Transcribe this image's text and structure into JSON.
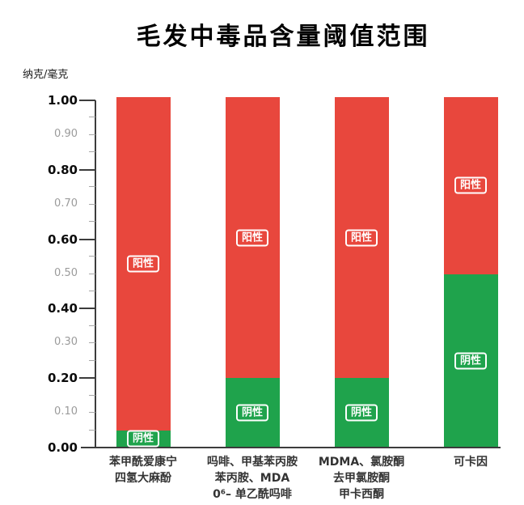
{
  "title": "毛发中毒品含量阈值范围",
  "y_axis": {
    "unit_label": "纳克/毫克",
    "min": 0,
    "max": 1,
    "label_step": 0.1,
    "tick_step": 0.05,
    "major_step": 0.2
  },
  "colors": {
    "positive_red": "#e8473d",
    "negative_green": "#1fa34c",
    "axis": "#3c3c3c",
    "minor_tick": "#a8a8a8",
    "minor_label": "#9b9b9b"
  },
  "chart_data": {
    "type": "bar",
    "stacked": true,
    "title": "毛发中毒品含量阈值范围",
    "ylabel": "纳克/毫克",
    "ylim": [
      0,
      1.0
    ],
    "grid": false,
    "legend": "none",
    "categories": [
      [
        "苯甲酰爱康宁",
        "四氢大麻酚"
      ],
      [
        "吗啡、甲基苯丙胺",
        "苯丙胺、MDA",
        "0⁶– 单乙酰吗啡"
      ],
      [
        "MDMA、氯胺酮",
        "去甲氯胺酮",
        "甲卡西酮"
      ],
      [
        "可卡因"
      ]
    ],
    "series": [
      {
        "name": "阴性",
        "color": "#1fa34c",
        "values": [
          0.05,
          0.2,
          0.2,
          0.5
        ]
      },
      {
        "name": "阳性",
        "color": "#e8473d",
        "values": [
          0.95,
          0.8,
          0.8,
          0.5
        ]
      }
    ],
    "ytick_labels": [
      "0.00",
      "0.10",
      "0.20",
      "0.30",
      "0.40",
      "0.50",
      "0.60",
      "0.70",
      "0.80",
      "0.90",
      "1.00"
    ]
  }
}
